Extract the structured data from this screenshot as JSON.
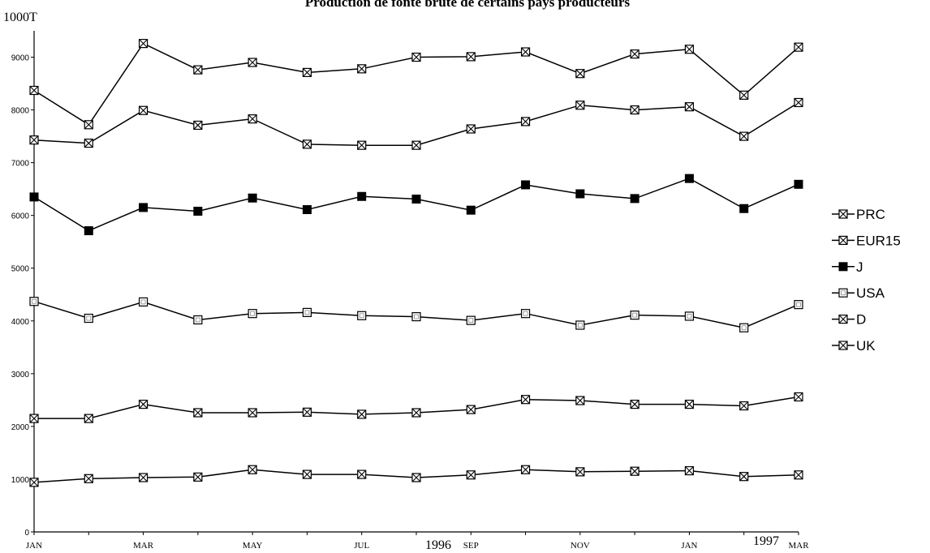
{
  "chart_data": {
    "type": "line",
    "title": "Production de fonte brute de certains pays producteurs",
    "ylabel": "1000T",
    "ylim": [
      0,
      9500
    ],
    "yticks": [
      0,
      1000,
      2000,
      3000,
      4000,
      5000,
      6000,
      7000,
      8000,
      9000
    ],
    "x": [
      "1996-01",
      "1996-02",
      "1996-03",
      "1996-04",
      "1996-05",
      "1996-06",
      "1996-07",
      "1996-08",
      "1996-09",
      "1996-10",
      "1996-11",
      "1996-12",
      "1997-01",
      "1997-02",
      "1997-03"
    ],
    "xtick_labels": [
      "JAN",
      "",
      "MAR",
      "",
      "MAY",
      "",
      "JUL",
      "",
      "SEP",
      "",
      "NOV",
      "",
      "JAN",
      "",
      "MAR"
    ],
    "year_labels": [
      "1996",
      "1997"
    ],
    "legend_position": "right",
    "series": [
      {
        "name": "PRC",
        "marker": "crossbox",
        "values": [
          8370,
          7720,
          9260,
          8760,
          8900,
          8710,
          8780,
          9000,
          9010,
          9100,
          8690,
          9060,
          9150,
          8280,
          9190
        ]
      },
      {
        "name": "EUR15",
        "marker": "crossbox",
        "values": [
          7430,
          7370,
          7990,
          7710,
          7830,
          7350,
          7330,
          7330,
          7640,
          7780,
          8090,
          8000,
          8060,
          7500,
          8140
        ]
      },
      {
        "name": "J",
        "marker": "filled",
        "values": [
          6350,
          5710,
          6150,
          6080,
          6330,
          6110,
          6360,
          6310,
          6100,
          6580,
          6410,
          6320,
          6700,
          6130,
          6590
        ]
      },
      {
        "name": "USA",
        "marker": "open",
        "values": [
          4370,
          4050,
          4360,
          4020,
          4140,
          4160,
          4100,
          4080,
          4010,
          4140,
          3920,
          4110,
          4090,
          3870,
          4310
        ]
      },
      {
        "name": "D",
        "marker": "crossbox",
        "values": [
          2150,
          2150,
          2420,
          2260,
          2260,
          2270,
          2230,
          2260,
          2320,
          2510,
          2490,
          2420,
          2420,
          2390,
          2560
        ]
      },
      {
        "name": "UK",
        "marker": "crossbox",
        "values": [
          940,
          1010,
          1030,
          1040,
          1180,
          1090,
          1090,
          1030,
          1080,
          1180,
          1140,
          1150,
          1160,
          1050,
          1080
        ]
      }
    ]
  }
}
